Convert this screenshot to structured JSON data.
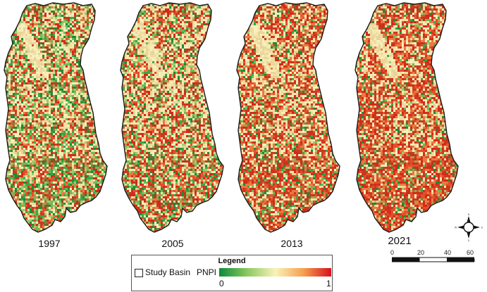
{
  "figure": {
    "panels": [
      {
        "year": "1997",
        "id": "p1997",
        "mix": {
          "green": 0.32,
          "yellow": 0.38,
          "red": 0.3
        }
      },
      {
        "year": "2005",
        "id": "p2005",
        "mix": {
          "green": 0.22,
          "yellow": 0.4,
          "red": 0.38
        }
      },
      {
        "year": "2013",
        "id": "p2013",
        "mix": {
          "green": 0.14,
          "yellow": 0.36,
          "red": 0.5
        }
      },
      {
        "year": "2021",
        "id": "p2021",
        "mix": {
          "green": 0.12,
          "yellow": 0.3,
          "red": 0.58
        }
      }
    ]
  },
  "legend": {
    "title": "Legend",
    "study_basin_label": "Study Basin",
    "ramp_label": "PNPI",
    "ramp_min": "0",
    "ramp_max": "1",
    "ramp_colors": [
      "#0a8a3a",
      "#8cc860",
      "#f8f3b8",
      "#f7a050",
      "#d8101c"
    ]
  },
  "scalebar": {
    "ticks": [
      "0",
      "20",
      "40",
      "60 km"
    ]
  },
  "compass": {
    "icon": "north-arrow-compass",
    "labels": [
      "N",
      "E",
      "S",
      "W"
    ]
  },
  "colors": {
    "green": "#2f9a3e",
    "yellow": "#f3e6a8",
    "red": "#d43a1e",
    "outline": "#1a1a1a"
  }
}
